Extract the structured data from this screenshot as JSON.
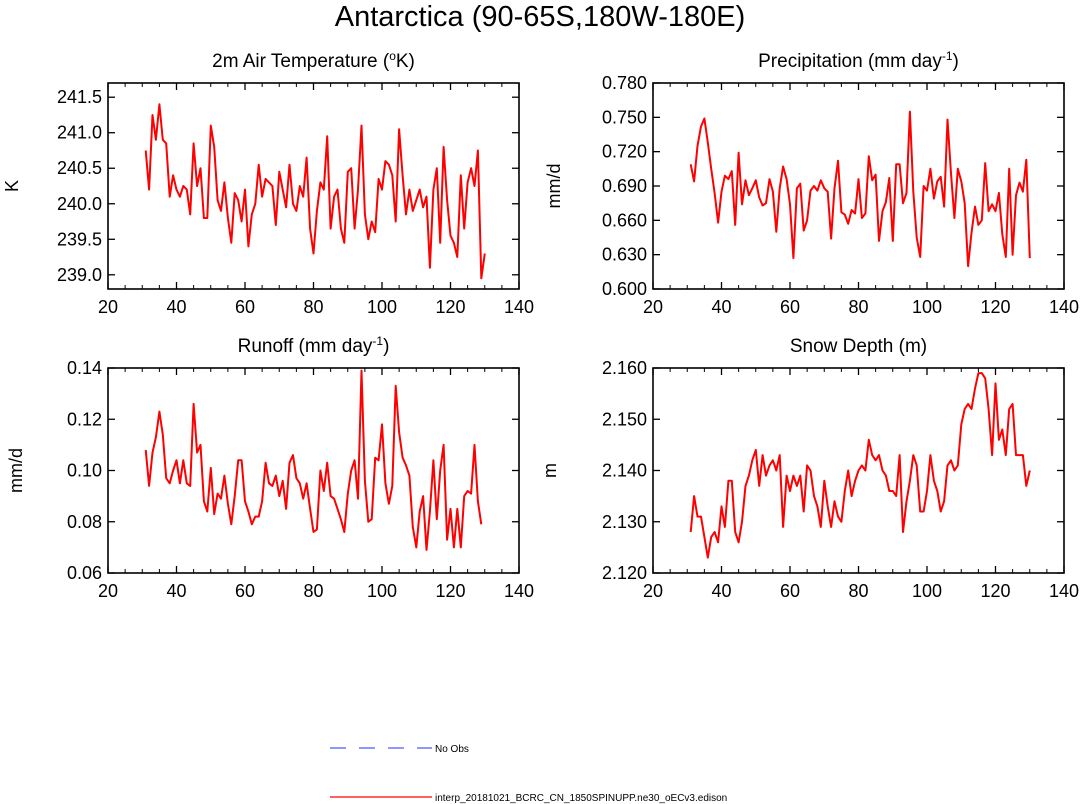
{
  "title": "Antarctica (90-65S,180W-180E)",
  "colors": {
    "series": "#ff0000",
    "no_obs": "#4a5bff",
    "axis": "#000000"
  },
  "legend": [
    {
      "label": "No Obs",
      "style": "dashed",
      "color": "#4a5bff"
    },
    {
      "label": "interp_20181021_BCRC_CN_1850SPINUPP.ne30_oECv3.edison",
      "style": "solid",
      "color": "#ff0000"
    }
  ],
  "chart_data": [
    {
      "type": "line",
      "id": "temp",
      "title_main": "2m Air Temperature (",
      "title_sup": "o",
      "title_tail": "K)",
      "xlabel": "",
      "ylabel": "K",
      "xlim": [
        20,
        140
      ],
      "ylim": [
        238.8,
        241.7
      ],
      "xticks": [
        20,
        40,
        60,
        80,
        100,
        120,
        140
      ],
      "yticks": [
        239.0,
        239.5,
        240.0,
        240.5,
        241.0,
        241.5
      ],
      "ytick_labels": [
        "239.0",
        "239.5",
        "240.0",
        "240.5",
        "241.0",
        "241.5"
      ],
      "x_start": 31,
      "values": [
        240.75,
        240.2,
        241.25,
        240.9,
        241.4,
        240.9,
        240.85,
        240.1,
        240.4,
        240.2,
        240.1,
        240.25,
        240.2,
        239.85,
        240.85,
        240.25,
        240.5,
        239.8,
        239.8,
        241.1,
        240.8,
        240.05,
        239.9,
        240.3,
        239.8,
        239.45,
        240.15,
        240.05,
        239.75,
        240.2,
        239.4,
        239.85,
        240.0,
        240.55,
        240.1,
        240.35,
        240.3,
        240.25,
        239.7,
        240.45,
        240.2,
        239.95,
        240.55,
        240.0,
        239.9,
        240.25,
        240.1,
        240.65,
        239.65,
        239.3,
        239.9,
        240.3,
        240.2,
        240.95,
        239.65,
        240.1,
        240.2,
        239.65,
        239.45,
        240.45,
        240.5,
        239.65,
        240.2,
        241.1,
        239.85,
        239.5,
        239.75,
        239.6,
        240.35,
        240.2,
        240.6,
        240.55,
        240.4,
        239.75,
        241.05,
        240.4,
        239.85,
        240.2,
        239.9,
        240.05,
        240.2,
        239.95,
        240.1,
        239.1,
        240.2,
        240.5,
        239.45,
        240.8,
        240.05,
        239.55,
        239.45,
        239.25,
        240.4,
        239.65,
        240.3,
        240.5,
        240.25,
        240.75,
        238.95,
        239.3
      ]
    },
    {
      "type": "line",
      "id": "precip",
      "title_main": "Precipitation (mm day",
      "title_sup": "-1",
      "title_tail": ")",
      "xlabel": "",
      "ylabel": "mm/d",
      "xlim": [
        20,
        140
      ],
      "ylim": [
        0.6,
        0.78
      ],
      "xticks": [
        20,
        40,
        60,
        80,
        100,
        120,
        140
      ],
      "yticks": [
        0.6,
        0.63,
        0.66,
        0.69,
        0.72,
        0.75,
        0.78
      ],
      "ytick_labels": [
        "0.600",
        "0.630",
        "0.660",
        "0.690",
        "0.720",
        "0.750",
        "0.780"
      ],
      "x_start": 31,
      "values": [
        0.709,
        0.694,
        0.725,
        0.742,
        0.749,
        0.728,
        0.705,
        0.684,
        0.658,
        0.685,
        0.699,
        0.696,
        0.703,
        0.656,
        0.719,
        0.674,
        0.695,
        0.682,
        0.688,
        0.695,
        0.68,
        0.673,
        0.675,
        0.696,
        0.685,
        0.65,
        0.688,
        0.707,
        0.696,
        0.674,
        0.627,
        0.688,
        0.692,
        0.651,
        0.66,
        0.686,
        0.69,
        0.686,
        0.695,
        0.688,
        0.685,
        0.644,
        0.688,
        0.712,
        0.667,
        0.665,
        0.657,
        0.669,
        0.666,
        0.696,
        0.662,
        0.666,
        0.716,
        0.695,
        0.7,
        0.642,
        0.668,
        0.676,
        0.697,
        0.642,
        0.709,
        0.709,
        0.675,
        0.684,
        0.755,
        0.685,
        0.645,
        0.628,
        0.69,
        0.686,
        0.705,
        0.679,
        0.694,
        0.698,
        0.672,
        0.748,
        0.701,
        0.662,
        0.705,
        0.694,
        0.675,
        0.62,
        0.649,
        0.672,
        0.656,
        0.66,
        0.71,
        0.668,
        0.674,
        0.668,
        0.684,
        0.648,
        0.628,
        0.705,
        0.63,
        0.682,
        0.693,
        0.685,
        0.713,
        0.627
      ]
    },
    {
      "type": "line",
      "id": "runoff",
      "title_main": "Runoff (mm day",
      "title_sup": "-1",
      "title_tail": ")",
      "xlabel": "",
      "ylabel": "mm/d",
      "xlim": [
        20,
        140
      ],
      "ylim": [
        0.06,
        0.14
      ],
      "xticks": [
        20,
        40,
        60,
        80,
        100,
        120,
        140
      ],
      "yticks": [
        0.06,
        0.08,
        0.1,
        0.12,
        0.14
      ],
      "ytick_labels": [
        "0.06",
        "0.08",
        "0.10",
        "0.12",
        "0.14"
      ],
      "x_start": 31,
      "values": [
        0.108,
        0.094,
        0.107,
        0.113,
        0.123,
        0.114,
        0.097,
        0.095,
        0.1,
        0.104,
        0.095,
        0.104,
        0.095,
        0.094,
        0.126,
        0.107,
        0.11,
        0.088,
        0.084,
        0.101,
        0.083,
        0.091,
        0.089,
        0.098,
        0.087,
        0.079,
        0.09,
        0.104,
        0.104,
        0.088,
        0.084,
        0.079,
        0.082,
        0.082,
        0.088,
        0.103,
        0.095,
        0.094,
        0.098,
        0.09,
        0.096,
        0.085,
        0.103,
        0.106,
        0.097,
        0.095,
        0.089,
        0.095,
        0.085,
        0.076,
        0.077,
        0.1,
        0.092,
        0.103,
        0.09,
        0.089,
        0.085,
        0.081,
        0.076,
        0.091,
        0.1,
        0.104,
        0.089,
        0.139,
        0.096,
        0.08,
        0.081,
        0.105,
        0.104,
        0.118,
        0.095,
        0.087,
        0.094,
        0.133,
        0.115,
        0.105,
        0.102,
        0.098,
        0.078,
        0.07,
        0.084,
        0.09,
        0.069,
        0.084,
        0.104,
        0.081,
        0.1,
        0.11,
        0.073,
        0.085,
        0.07,
        0.085,
        0.07,
        0.09,
        0.092,
        0.091,
        0.11,
        0.088,
        0.079
      ]
    },
    {
      "type": "line",
      "id": "snow",
      "title_main": "Snow Depth (m)",
      "title_sup": "",
      "title_tail": "",
      "xlabel": "",
      "ylabel": "m",
      "xlim": [
        20,
        140
      ],
      "ylim": [
        2.12,
        2.16
      ],
      "xticks": [
        20,
        40,
        60,
        80,
        100,
        120,
        140
      ],
      "yticks": [
        2.12,
        2.13,
        2.14,
        2.15,
        2.16
      ],
      "ytick_labels": [
        "2.120",
        "2.130",
        "2.140",
        "2.150",
        "2.160"
      ],
      "x_start": 31,
      "values": [
        2.128,
        2.135,
        2.131,
        2.131,
        2.127,
        2.123,
        2.127,
        2.128,
        2.126,
        2.133,
        2.129,
        2.138,
        2.138,
        2.128,
        2.126,
        2.13,
        2.137,
        2.139,
        2.142,
        2.144,
        2.137,
        2.143,
        2.139,
        2.141,
        2.142,
        2.14,
        2.143,
        2.129,
        2.139,
        2.136,
        2.139,
        2.137,
        2.139,
        2.132,
        2.141,
        2.14,
        2.135,
        2.133,
        2.129,
        2.138,
        2.133,
        2.129,
        2.134,
        2.131,
        2.13,
        2.136,
        2.14,
        2.135,
        2.138,
        2.14,
        2.141,
        2.14,
        2.146,
        2.143,
        2.142,
        2.143,
        2.14,
        2.139,
        2.136,
        2.136,
        2.135,
        2.143,
        2.128,
        2.134,
        2.138,
        2.143,
        2.141,
        2.132,
        2.132,
        2.136,
        2.143,
        2.138,
        2.136,
        2.132,
        2.134,
        2.141,
        2.142,
        2.14,
        2.141,
        2.149,
        2.152,
        2.153,
        2.152,
        2.156,
        2.159,
        2.159,
        2.158,
        2.152,
        2.143,
        2.157,
        2.146,
        2.148,
        2.143,
        2.152,
        2.153,
        2.143,
        2.143,
        2.143,
        2.137,
        2.14
      ]
    }
  ]
}
